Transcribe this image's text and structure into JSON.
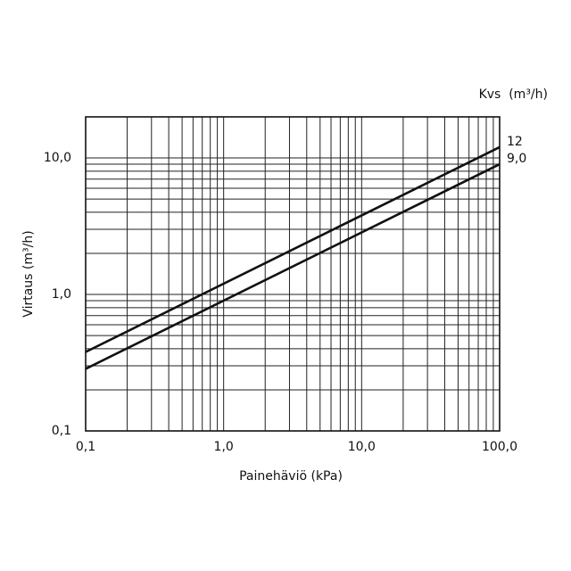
{
  "chart_data": {
    "type": "line",
    "x_label": "Painehäviö (kPa)",
    "y_label": "Virtaus (m³/h)",
    "legend_title": "Kvs  (m³/h)",
    "x": [
      0.1,
      100
    ],
    "series": [
      {
        "name": "12",
        "color": "#111111",
        "values": [
          0.379,
          12
        ]
      },
      {
        "name": "9,0",
        "color": "#111111",
        "values": [
          0.285,
          9
        ]
      }
    ],
    "xlim": [
      0.1,
      100
    ],
    "ylim": [
      0.1,
      20
    ],
    "log_x": true,
    "log_y": true,
    "grid": true,
    "minor_grid": true,
    "xticks": [
      {
        "value": 0.1,
        "label": "0,1"
      },
      {
        "value": 1,
        "label": "1,0"
      },
      {
        "value": 10,
        "label": "10,0"
      },
      {
        "value": 100,
        "label": "100,0"
      }
    ],
    "yticks": [
      {
        "value": 0.1,
        "label": "0,1"
      },
      {
        "value": 1,
        "label": "1,0"
      },
      {
        "value": 10,
        "label": "10,0"
      }
    ]
  }
}
